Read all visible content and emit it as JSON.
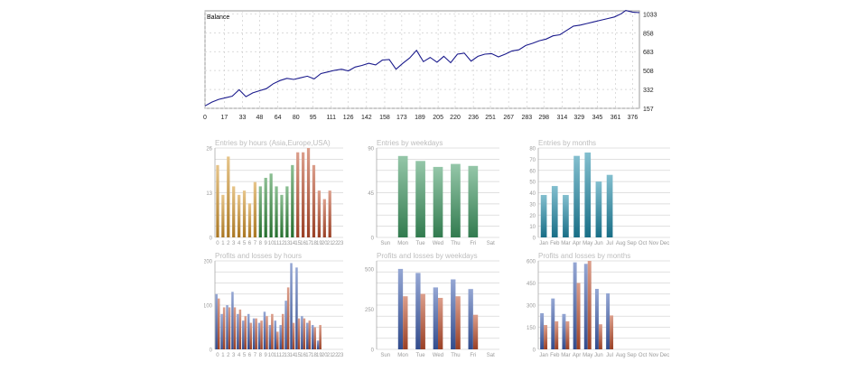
{
  "chart_data": [
    {
      "id": "balance",
      "type": "line",
      "title": "Balance",
      "xlabel": "",
      "ylabel": "",
      "xlim": [
        0,
        382
      ],
      "ylim": [
        157,
        1062
      ],
      "x_ticks": [
        0,
        17,
        33,
        48,
        64,
        80,
        95,
        111,
        126,
        142,
        158,
        173,
        189,
        205,
        220,
        236,
        251,
        267,
        283,
        298,
        314,
        329,
        345,
        361,
        376
      ],
      "y_ticks": [
        157,
        332,
        508,
        683,
        858,
        1033
      ],
      "grid": true,
      "colors": {
        "line": "#1a1a8c",
        "grid": "#cfcfcf"
      },
      "series": [
        {
          "x": [
            0,
            6,
            12,
            18,
            24,
            30,
            36,
            42,
            48,
            54,
            60,
            66,
            72,
            78,
            84,
            90,
            96,
            102,
            108,
            114,
            120,
            126,
            132,
            138,
            144,
            150,
            156,
            162,
            168,
            174,
            180,
            186,
            192,
            198,
            204,
            210,
            216,
            222,
            228,
            234,
            240,
            246,
            252,
            258,
            264,
            270,
            276,
            282,
            288,
            294,
            300,
            306,
            312,
            318,
            324,
            330,
            336,
            342,
            348,
            354,
            360,
            366,
            370,
            376,
            382
          ],
          "y": [
            180,
            215,
            240,
            255,
            270,
            330,
            265,
            300,
            320,
            340,
            385,
            415,
            435,
            425,
            440,
            455,
            430,
            480,
            495,
            510,
            520,
            505,
            540,
            555,
            575,
            560,
            605,
            610,
            520,
            575,
            625,
            695,
            590,
            630,
            585,
            640,
            580,
            660,
            670,
            595,
            640,
            660,
            665,
            635,
            660,
            690,
            700,
            740,
            760,
            785,
            800,
            830,
            840,
            880,
            920,
            930,
            945,
            960,
            975,
            990,
            1005,
            1035,
            1065,
            1050,
            1045
          ]
        }
      ]
    },
    {
      "id": "entries-hours",
      "type": "bar",
      "title": "Entries by hours (Asia,Europe,USA)",
      "categories": [
        "0",
        "1",
        "2",
        "3",
        "4",
        "5",
        "6",
        "7",
        "8",
        "9",
        "10",
        "11",
        "12",
        "13",
        "14",
        "15",
        "16",
        "17",
        "18",
        "19",
        "20",
        "21",
        "22",
        "23"
      ],
      "values": [
        17,
        10,
        19,
        12,
        10,
        11,
        8,
        13,
        12,
        14,
        15,
        12,
        10,
        12,
        17,
        20,
        20,
        21,
        17,
        11,
        9,
        11,
        0,
        0
      ],
      "ylim": [
        0,
        21
      ],
      "y_ticks": [
        0,
        13,
        26
      ],
      "tick_label_max": 26,
      "grid": true,
      "colors": {
        "asia": "#d4952a",
        "europe": "#2e8b3a",
        "usa": "#c0502e"
      }
    },
    {
      "id": "entries-weekdays",
      "type": "bar",
      "title": "Entries by weekdays",
      "categories": [
        "Sun",
        "Mon",
        "Tue",
        "Wed",
        "Thu",
        "Fri",
        "Sat"
      ],
      "values": [
        0,
        82,
        77,
        71,
        74,
        72,
        0
      ],
      "ylim": [
        0,
        90
      ],
      "y_ticks": [
        0,
        45,
        90
      ],
      "grid": true,
      "colors": {
        "bar": "#3e9a63"
      }
    },
    {
      "id": "entries-months",
      "type": "bar",
      "title": "Entries by months",
      "categories": [
        "Jan",
        "Feb",
        "Mar",
        "Apr",
        "May",
        "Jun",
        "Jul",
        "Aug",
        "Sep",
        "Oct",
        "Nov",
        "Dec"
      ],
      "values": [
        38,
        46,
        38,
        73,
        76,
        50,
        56,
        0,
        0,
        0,
        0,
        0
      ],
      "ylim": [
        0,
        80
      ],
      "y_ticks": [
        0,
        10,
        20,
        30,
        40,
        50,
        60,
        70,
        80
      ],
      "grid": true,
      "colors": {
        "bar": "#1e8aa8"
      }
    },
    {
      "id": "pl-hours",
      "type": "bar",
      "title": "Profits and losses by hours",
      "categories": [
        "0",
        "1",
        "2",
        "3",
        "4",
        "5",
        "6",
        "7",
        "8",
        "9",
        "10",
        "11",
        "12",
        "13",
        "14",
        "15",
        "16",
        "17",
        "18",
        "19",
        "20",
        "21",
        "22",
        "23"
      ],
      "series": [
        {
          "values": [
            125,
            80,
            100,
            130,
            80,
            65,
            80,
            70,
            60,
            85,
            55,
            65,
            55,
            110,
            195,
            185,
            75,
            60,
            55,
            20,
            0,
            0,
            0,
            0
          ]
        },
        {
          "values": [
            115,
            95,
            95,
            95,
            90,
            75,
            60,
            70,
            65,
            75,
            80,
            40,
            80,
            140,
            60,
            70,
            70,
            65,
            50,
            55,
            0,
            0,
            0,
            0
          ]
        }
      ],
      "ylim": [
        0,
        200
      ],
      "y_ticks": [
        0,
        100,
        200
      ],
      "grid": true,
      "colors": {
        "profit": "#3f5fb0",
        "loss": "#c0502e"
      }
    },
    {
      "id": "pl-weekdays",
      "type": "bar",
      "title": "Profits and losses by weekdays",
      "categories": [
        "Sun",
        "Mon",
        "Tue",
        "Wed",
        "Thu",
        "Fri",
        "Sat"
      ],
      "series": [
        {
          "values": [
            0,
            500,
            475,
            385,
            435,
            375,
            0
          ]
        },
        {
          "values": [
            0,
            330,
            345,
            320,
            330,
            215,
            0
          ]
        }
      ],
      "ylim": [
        0,
        550
      ],
      "y_ticks": [
        0,
        250,
        500
      ],
      "grid": true,
      "colors": {
        "profit": "#3f5fb0",
        "loss": "#c0502e"
      }
    },
    {
      "id": "pl-months",
      "type": "bar",
      "title": "Profits and losses by months",
      "categories": [
        "Jan",
        "Feb",
        "Mar",
        "Apr",
        "May",
        "Jun",
        "Jul",
        "Aug",
        "Sep",
        "Oct",
        "Nov",
        "Dec"
      ],
      "series": [
        {
          "values": [
            245,
            345,
            240,
            590,
            580,
            410,
            380,
            0,
            0,
            0,
            0,
            0
          ]
        },
        {
          "values": [
            165,
            190,
            190,
            450,
            600,
            170,
            230,
            0,
            0,
            0,
            0,
            0
          ]
        }
      ],
      "ylim": [
        0,
        600
      ],
      "y_ticks": [
        0,
        150,
        300,
        450,
        600
      ],
      "grid": true,
      "colors": {
        "profit": "#3f5fb0",
        "loss": "#c0502e"
      }
    }
  ]
}
